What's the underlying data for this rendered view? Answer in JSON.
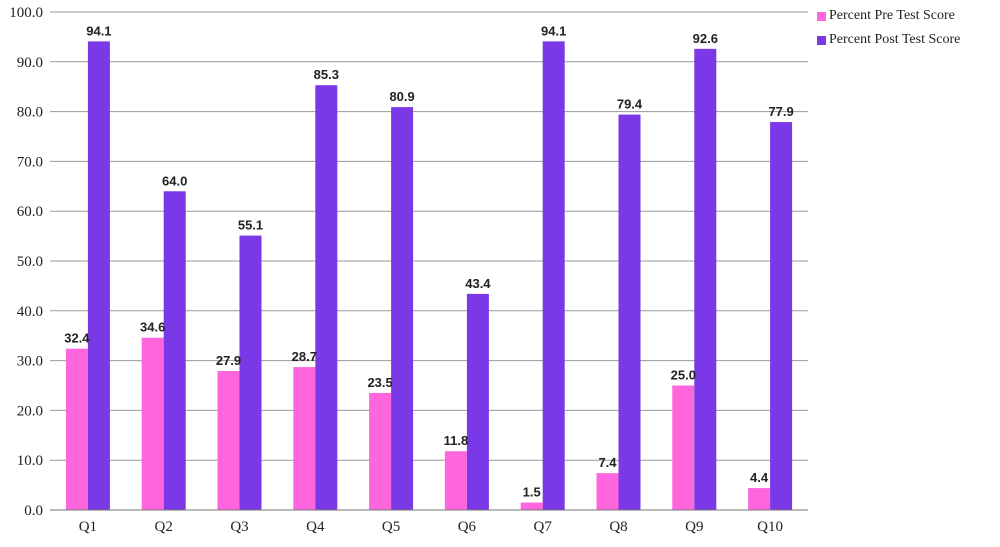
{
  "chart_data": {
    "type": "bar",
    "categories": [
      "Q1",
      "Q2",
      "Q3",
      "Q4",
      "Q5",
      "Q6",
      "Q7",
      "Q8",
      "Q9",
      "Q10"
    ],
    "series": [
      {
        "name": "Percent Pre Test Score",
        "color": "#ff66dd",
        "values": [
          32.4,
          34.6,
          27.9,
          28.7,
          23.5,
          11.8,
          1.5,
          7.4,
          25.0,
          4.4
        ],
        "labels": [
          "32.4",
          "34.6",
          "27.9",
          "28.7",
          "23.5",
          "11.8",
          "1.5",
          "7.4",
          "25.0",
          "4.4"
        ]
      },
      {
        "name": "Percent Post Test Score",
        "color": "#7a38e6",
        "values": [
          94.1,
          64.0,
          55.1,
          85.3,
          80.9,
          43.4,
          94.1,
          79.4,
          92.6,
          77.9
        ],
        "labels": [
          "94.1",
          "64.0",
          "55.1",
          "85.3",
          "80.9",
          "43.4",
          "94.1",
          "79.4",
          "92.6",
          "77.9"
        ]
      }
    ],
    "y_ticks": [
      "0.0",
      "10.0",
      "20.0",
      "30.0",
      "40.0",
      "50.0",
      "60.0",
      "70.0",
      "80.0",
      "90.0",
      "100.0"
    ],
    "ylim": [
      0,
      100
    ],
    "grid": true,
    "legend_position": "top-right"
  }
}
